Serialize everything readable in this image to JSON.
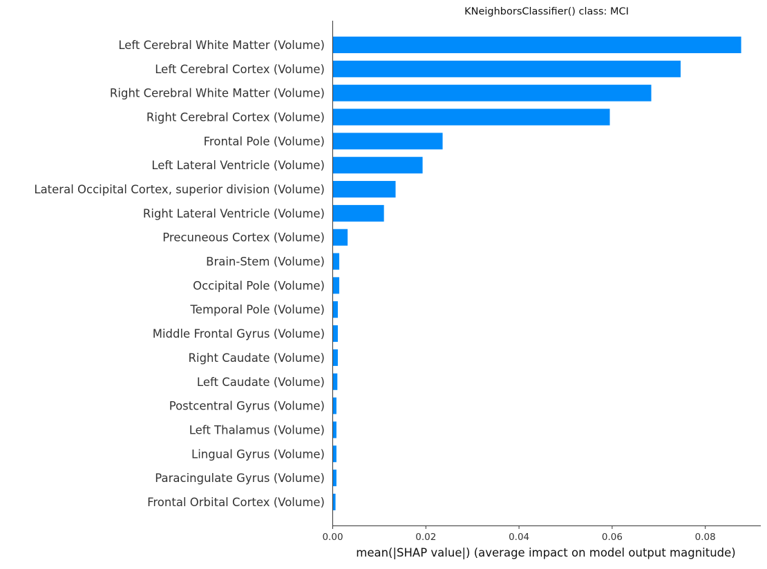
{
  "chart_data": {
    "type": "bar",
    "orientation": "horizontal",
    "title": "KNeighborsClassifier() class: MCI",
    "xlabel": "mean(|SHAP value|) (average impact on model output magnitude)",
    "ylabel": "",
    "xlim": [
      0,
      0.092
    ],
    "xticks": [
      "0.00",
      "0.02",
      "0.04",
      "0.06",
      "0.08"
    ],
    "xtick_values": [
      0,
      0.02,
      0.04,
      0.06,
      0.08
    ],
    "grid": false,
    "bar_color": "#008bfb",
    "categories": [
      "Left Cerebral White Matter (Volume)",
      "Left Cerebral Cortex  (Volume)",
      "Right Cerebral White Matter (Volume)",
      "Right Cerebral Cortex (Volume)",
      "Frontal Pole (Volume)",
      "Left Lateral Ventricle (Volume)",
      "Lateral Occipital Cortex, superior division (Volume)",
      "Right Lateral Ventricle (Volume)",
      "Precuneous Cortex (Volume)",
      "Brain-Stem (Volume)",
      "Occipital Pole (Volume)",
      "Temporal Pole (Volume)",
      "Middle Frontal Gyrus (Volume)",
      "Right Caudate (Volume)",
      "Left Caudate (Volume)",
      "Postcentral Gyrus (Volume)",
      "Left Thalamus (Volume)",
      "Lingual Gyrus (Volume)",
      "Paracingulate Gyrus (Volume)",
      "Frontal Orbital Cortex (Volume)"
    ],
    "values": [
      0.0877,
      0.0747,
      0.0684,
      0.0595,
      0.0236,
      0.0193,
      0.0135,
      0.011,
      0.0032,
      0.0014,
      0.0014,
      0.0011,
      0.0011,
      0.0011,
      0.001,
      0.0008,
      0.0008,
      0.0008,
      0.0008,
      0.0006
    ]
  }
}
